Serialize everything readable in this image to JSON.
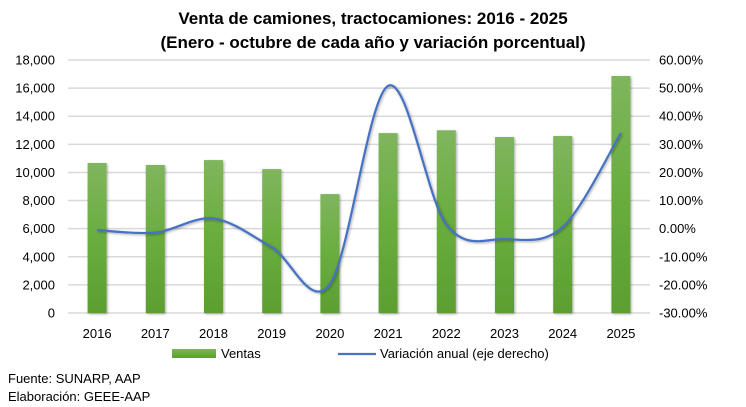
{
  "chart_data": {
    "type": "bar+line",
    "title": [
      "Venta de camiones, tractocamiones: 2016 - 2025",
      "(Enero - octubre de cada año y variación porcentual)"
    ],
    "categories": [
      "2016",
      "2017",
      "2018",
      "2019",
      "2020",
      "2021",
      "2022",
      "2023",
      "2024",
      "2025"
    ],
    "series": [
      {
        "name": "Ventas",
        "type": "bar",
        "axis": "left",
        "color": "#6aac3c",
        "values": [
          10670,
          10530,
          10880,
          10240,
          8460,
          12800,
          13000,
          12520,
          12590,
          16860
        ]
      },
      {
        "name": "Variación anual (eje derecho)",
        "type": "line",
        "axis": "right",
        "color": "#4472c4",
        "values": [
          -0.5,
          -1.4,
          3.6,
          -6.6,
          -19.7,
          50.8,
          1.5,
          -3.7,
          0.6,
          34.0
        ]
      }
    ],
    "left_axis": {
      "min": 0,
      "max": 18000,
      "step": 2000,
      "tick_labels": [
        "0",
        "2,000",
        "4,000",
        "6,000",
        "8,000",
        "10,000",
        "12,000",
        "14,000",
        "16,000",
        "18,000"
      ]
    },
    "right_axis": {
      "min": -30,
      "max": 60,
      "step": 10,
      "tick_labels": [
        "-30.00%",
        "-20.00%",
        "-10.00%",
        "0.00%",
        "10.00%",
        "20.00%",
        "30.00%",
        "40.00%",
        "50.00%",
        "60.00%"
      ]
    },
    "grid": true,
    "legend_position": "bottom"
  },
  "footer": {
    "source": "Fuente: SUNARP, AAP",
    "elaboration": "Elaboración: GEEE-AAP"
  }
}
